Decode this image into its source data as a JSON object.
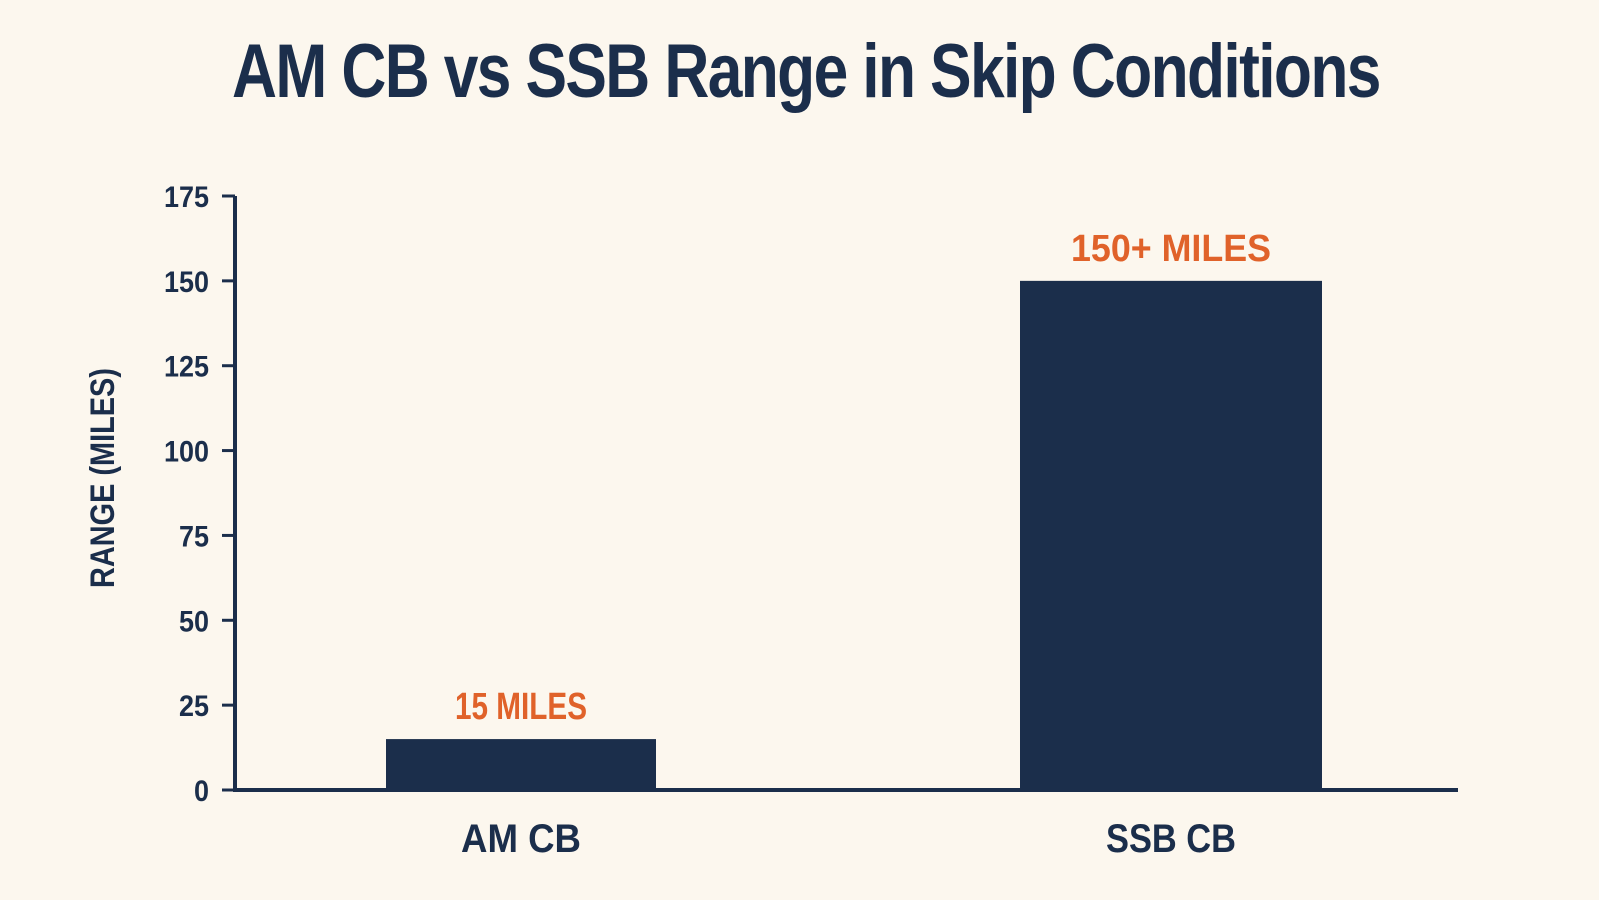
{
  "chart_data": {
    "type": "bar",
    "title": "AM CB vs SSB Range in Skip Conditions",
    "xlabel": "",
    "ylabel": "RANGE (MILES)",
    "categories": [
      "AM CB",
      "SSB CB"
    ],
    "values": [
      15,
      150
    ],
    "data_labels": [
      "15 MILES",
      "150+ MILES"
    ],
    "ylim": [
      0,
      175
    ],
    "yticks": [
      0,
      25,
      50,
      75,
      100,
      125,
      150,
      175
    ],
    "grid": false,
    "legend": "none",
    "colors": {
      "bar": "#1b2e4b",
      "axis": "#1b2e4b",
      "data_label": "#e0622a",
      "background": "#fcf7ee"
    }
  }
}
